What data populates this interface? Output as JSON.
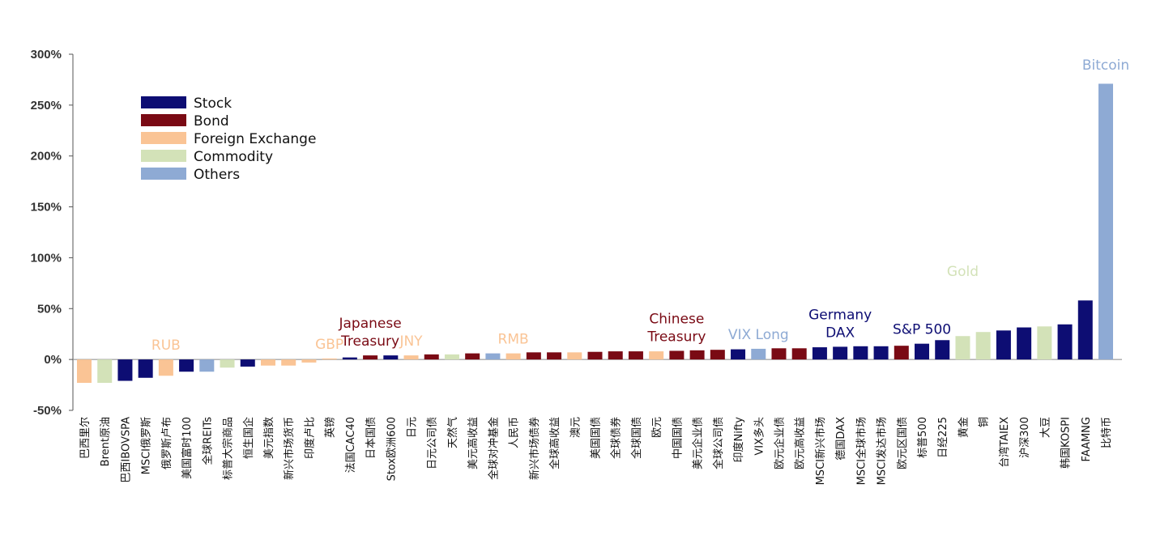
{
  "chart_data": {
    "type": "bar",
    "title": "",
    "xlabel": "",
    "ylabel": "",
    "ylim": [
      -50,
      300
    ],
    "yticks": [
      "-50%",
      "0%",
      "50%",
      "100%",
      "150%",
      "200%",
      "250%",
      "300%"
    ],
    "ytick_values": [
      -50,
      0,
      50,
      100,
      150,
      200,
      250,
      300
    ],
    "grid": false,
    "legend_position": "top-left",
    "category_colors": {
      "Stock": "#0d0d73",
      "Bond": "#7a0a14",
      "Foreign Exchange": "#fac495",
      "Commodity": "#d3e2b8",
      "Others": "#8eaad4"
    },
    "legend": [
      {
        "label": "Stock",
        "color": "#0d0d73"
      },
      {
        "label": "Bond",
        "color": "#7a0a14"
      },
      {
        "label": "Foreign Exchange",
        "color": "#fac495"
      },
      {
        "label": "Commodity",
        "color": "#d3e2b8"
      },
      {
        "label": "Others",
        "color": "#8eaad4"
      }
    ],
    "bars": [
      {
        "label": "巴西里尔",
        "value": -23,
        "group": "Foreign Exchange"
      },
      {
        "label": "Brent原油",
        "value": -23,
        "group": "Commodity"
      },
      {
        "label": "巴西IBOVSPA",
        "value": -21,
        "group": "Stock"
      },
      {
        "label": "MSCI俄罗斯",
        "value": -18,
        "group": "Stock"
      },
      {
        "label": "俄罗斯卢布",
        "value": -16,
        "group": "Foreign Exchange"
      },
      {
        "label": "美国富时100",
        "value": -12,
        "group": "Stock"
      },
      {
        "label": "全球REITs",
        "value": -12,
        "group": "Others"
      },
      {
        "label": "标普大宗商品",
        "value": -8,
        "group": "Commodity"
      },
      {
        "label": "恒生国企",
        "value": -7,
        "group": "Stock"
      },
      {
        "label": "美元指数",
        "value": -6,
        "group": "Foreign Exchange"
      },
      {
        "label": "新兴市场货币",
        "value": -6,
        "group": "Foreign Exchange"
      },
      {
        "label": "印度卢比",
        "value": -3,
        "group": "Foreign Exchange"
      },
      {
        "label": "英镑",
        "value": 1,
        "group": "Foreign Exchange"
      },
      {
        "label": "法国CAC40",
        "value": 2,
        "group": "Stock"
      },
      {
        "label": "日本国债",
        "value": 4,
        "group": "Bond"
      },
      {
        "label": "Stox欧洲600",
        "value": 4,
        "group": "Stock"
      },
      {
        "label": "日元",
        "value": 4,
        "group": "Foreign Exchange"
      },
      {
        "label": "日元公司债",
        "value": 5,
        "group": "Bond"
      },
      {
        "label": "天然气",
        "value": 5,
        "group": "Commodity"
      },
      {
        "label": "美元高收益",
        "value": 6,
        "group": "Bond"
      },
      {
        "label": "全球对冲基金",
        "value": 6,
        "group": "Others"
      },
      {
        "label": "人民币",
        "value": 6,
        "group": "Foreign Exchange"
      },
      {
        "label": "新兴市场债券",
        "value": 7,
        "group": "Bond"
      },
      {
        "label": "全球高收益",
        "value": 7,
        "group": "Bond"
      },
      {
        "label": "澳元",
        "value": 7,
        "group": "Foreign Exchange"
      },
      {
        "label": "美国国债",
        "value": 7.5,
        "group": "Bond"
      },
      {
        "label": "全球债券",
        "value": 8,
        "group": "Bond"
      },
      {
        "label": "全球国债",
        "value": 8,
        "group": "Bond"
      },
      {
        "label": "欧元",
        "value": 8,
        "group": "Foreign Exchange"
      },
      {
        "label": "中国国债",
        "value": 8.5,
        "group": "Bond"
      },
      {
        "label": "美元企业债",
        "value": 9,
        "group": "Bond"
      },
      {
        "label": "全球公司债",
        "value": 9.5,
        "group": "Bond"
      },
      {
        "label": "印度Nifty",
        "value": 10,
        "group": "Stock"
      },
      {
        "label": "VIX多头",
        "value": 10.5,
        "group": "Others"
      },
      {
        "label": "欧元企业债",
        "value": 11,
        "group": "Bond"
      },
      {
        "label": "欧元高收益",
        "value": 11,
        "group": "Bond"
      },
      {
        "label": "MSCI新兴市场",
        "value": 12,
        "group": "Stock"
      },
      {
        "label": "德国DAX",
        "value": 12.5,
        "group": "Stock"
      },
      {
        "label": "MSCI全球市场",
        "value": 13,
        "group": "Stock"
      },
      {
        "label": "MSCI发达市场",
        "value": 13,
        "group": "Stock"
      },
      {
        "label": "欧元区国债",
        "value": 13.5,
        "group": "Bond"
      },
      {
        "label": "标普500",
        "value": 15.5,
        "group": "Stock"
      },
      {
        "label": "日经225",
        "value": 19,
        "group": "Stock"
      },
      {
        "label": "黄金",
        "value": 23,
        "group": "Commodity"
      },
      {
        "label": "铜",
        "value": 27,
        "group": "Commodity"
      },
      {
        "label": "台湾TAIEX",
        "value": 28.5,
        "group": "Stock"
      },
      {
        "label": "沪深300",
        "value": 31.5,
        "group": "Stock"
      },
      {
        "label": "大豆",
        "value": 32.5,
        "group": "Commodity"
      },
      {
        "label": "韩国KOSPI",
        "value": 34.5,
        "group": "Stock"
      },
      {
        "label": "FAAMNG",
        "value": 58,
        "group": "Stock"
      },
      {
        "label": "比特币",
        "value": 271,
        "group": "Others"
      }
    ],
    "annotations": [
      {
        "text": "RUB",
        "bar_index": 4,
        "color": "#fac495"
      },
      {
        "text": "Japanese\nTreasury",
        "bar_index": 14,
        "color": "#7a0a14"
      },
      {
        "text": "GBP",
        "bar_index": 12,
        "color": "#fac495"
      },
      {
        "text": "JNY",
        "bar_index": 16,
        "color": "#fac495"
      },
      {
        "text": "RMB",
        "bar_index": 21,
        "color": "#fac495"
      },
      {
        "text": "Chinese\nTreasury",
        "bar_index": 29,
        "color": "#7a0a14"
      },
      {
        "text": "VIX Long",
        "bar_index": 33,
        "color": "#8eaad4"
      },
      {
        "text": "Germany\nDAX",
        "bar_index": 37,
        "color": "#0d0d73"
      },
      {
        "text": "S&P 500",
        "bar_index": 41,
        "color": "#0d0d73"
      },
      {
        "text": "Gold",
        "bar_index": 43,
        "color": "#d3e2b8"
      },
      {
        "text": "Bitcoin",
        "bar_index": 50,
        "color": "#8eaad4"
      }
    ]
  }
}
